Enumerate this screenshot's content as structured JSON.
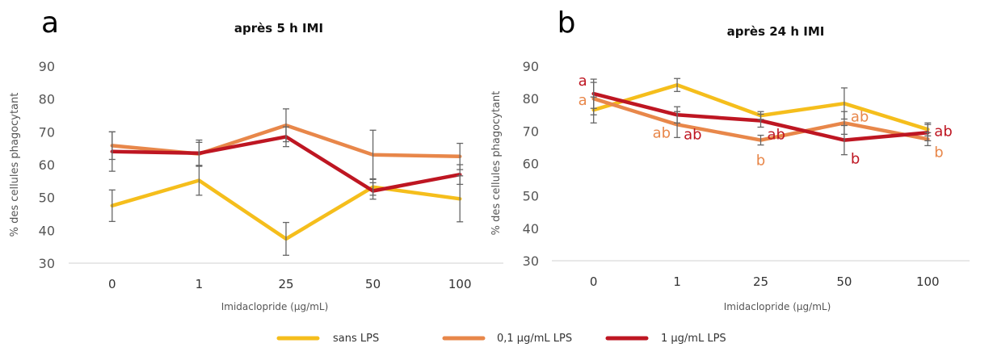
{
  "chart_data": [
    {
      "type": "line",
      "panel_letter": "a",
      "title": "après 5 h IMI",
      "xlabel": "Imidaclopride (µg/mL)",
      "ylabel": "% des cellules phagocytant",
      "categories": [
        "0",
        "1",
        "25",
        "50",
        "100"
      ],
      "ylim": [
        30,
        90
      ],
      "yticks": [
        "30",
        "40",
        "50",
        "60",
        "70",
        "80",
        "90"
      ],
      "grid": false,
      "legend": "bottom",
      "series": [
        {
          "name": "sans LPS",
          "color": "#F5BE1C",
          "values": [
            47.5,
            55.2,
            37.4,
            53.2,
            49.6
          ],
          "error": [
            4.8,
            4.5,
            5.0,
            2.5,
            7.0
          ]
        },
        {
          "name": "0,1 µg/mL LPS",
          "color": "#E8874A",
          "values": [
            65.8,
            63.3,
            72.0,
            63.0,
            62.5
          ],
          "error": [
            4.2,
            3.5,
            5.0,
            7.5,
            4.0
          ]
        },
        {
          "name": "1 µg/mL LPS",
          "color": "#BE1622",
          "values": [
            64.0,
            63.5,
            68.5,
            52.0,
            57.0
          ],
          "error": [
            6.0,
            4.0,
            3.0,
            2.5,
            3.0
          ]
        }
      ],
      "annotations": []
    },
    {
      "type": "line",
      "panel_letter": "b",
      "title": "après 24 h IMI",
      "xlabel": "Imidaclopride (µg/mL)",
      "ylabel": "% des cellules phagocytant",
      "categories": [
        "0",
        "1",
        "25",
        "50",
        "100"
      ],
      "ylim": [
        30,
        90
      ],
      "yticks": [
        "30",
        "40",
        "50",
        "60",
        "70",
        "80",
        "90"
      ],
      "grid": false,
      "legend": "bottom",
      "series": [
        {
          "name": "sans LPS",
          "color": "#F5BE1C",
          "values": [
            76.5,
            84.2,
            74.8,
            78.5,
            70.5
          ],
          "error": [
            4.0,
            2.0,
            1.2,
            4.8,
            2.0
          ]
        },
        {
          "name": "0,1 µg/mL LPS",
          "color": "#E8874A",
          "values": [
            80.0,
            72.0,
            67.2,
            72.5,
            67.5
          ],
          "error": [
            5.0,
            4.0,
            1.5,
            3.5,
            2.0
          ]
        },
        {
          "name": "1 µg/mL LPS",
          "color": "#BE1622",
          "values": [
            81.5,
            75.0,
            73.2,
            67.2,
            69.5
          ],
          "error": [
            4.5,
            2.5,
            2.0,
            4.5,
            2.5
          ]
        }
      ],
      "annotations": [
        {
          "text": "a",
          "series": "1 µg/mL LPS",
          "category": "0",
          "y": 85.5,
          "side": "left"
        },
        {
          "text": "a",
          "series": "0,1 µg/mL LPS",
          "category": "0",
          "y": 79.5,
          "side": "left"
        },
        {
          "text": "ab",
          "series": "0,1 µg/mL LPS",
          "category": "1",
          "y": 69.5,
          "side": "left"
        },
        {
          "text": "ab",
          "series": "1 µg/mL LPS",
          "category": "1",
          "y": 69.0,
          "side": "right"
        },
        {
          "text": "b",
          "series": "0,1 µg/mL LPS",
          "category": "25",
          "y": 61.0,
          "side": "center"
        },
        {
          "text": "ab",
          "series": "1 µg/mL LPS",
          "category": "25",
          "y": 69.0,
          "side": "right"
        },
        {
          "text": "ab",
          "series": "0,1 µg/mL LPS",
          "category": "50",
          "y": 74.5,
          "side": "right"
        },
        {
          "text": "b",
          "series": "1 µg/mL LPS",
          "category": "50",
          "y": 61.5,
          "side": "right"
        },
        {
          "text": "ab",
          "series": "1 µg/mL LPS",
          "category": "100",
          "y": 70.0,
          "side": "right"
        },
        {
          "text": "b",
          "series": "0,1 µg/mL LPS",
          "category": "100",
          "y": 63.5,
          "side": "right"
        }
      ]
    }
  ],
  "legend": {
    "items": [
      {
        "label": "sans LPS",
        "color": "#F5BE1C"
      },
      {
        "label": "0,1 µg/mL LPS",
        "color": "#E8874A"
      },
      {
        "label": "1 µg/mL LPS",
        "color": "#BE1622"
      }
    ]
  }
}
